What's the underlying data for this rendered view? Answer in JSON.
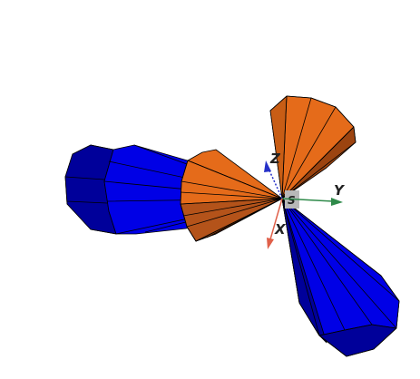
{
  "axes": {
    "x": {
      "label": "X",
      "color": "#e0604a"
    },
    "y": {
      "label": "Y",
      "color": "#2f8a4a"
    },
    "z": {
      "label": "Z",
      "color": "#2530c8"
    }
  },
  "origin": {
    "label": "S",
    "color": "#b8b8b8"
  },
  "lobes": [
    {
      "name": "blue-lobe-upper-left",
      "fill": "#0000e6",
      "shade": "#00009a"
    },
    {
      "name": "orange-lobe-left",
      "fill": "#e56b1a",
      "shade": "#9c4410"
    },
    {
      "name": "orange-lobe-top",
      "fill": "#e56b1a",
      "shade": "#9c4410"
    },
    {
      "name": "blue-lobe-lower-right",
      "fill": "#0000e6",
      "shade": "#00009a"
    }
  ],
  "background": "#ffffff"
}
